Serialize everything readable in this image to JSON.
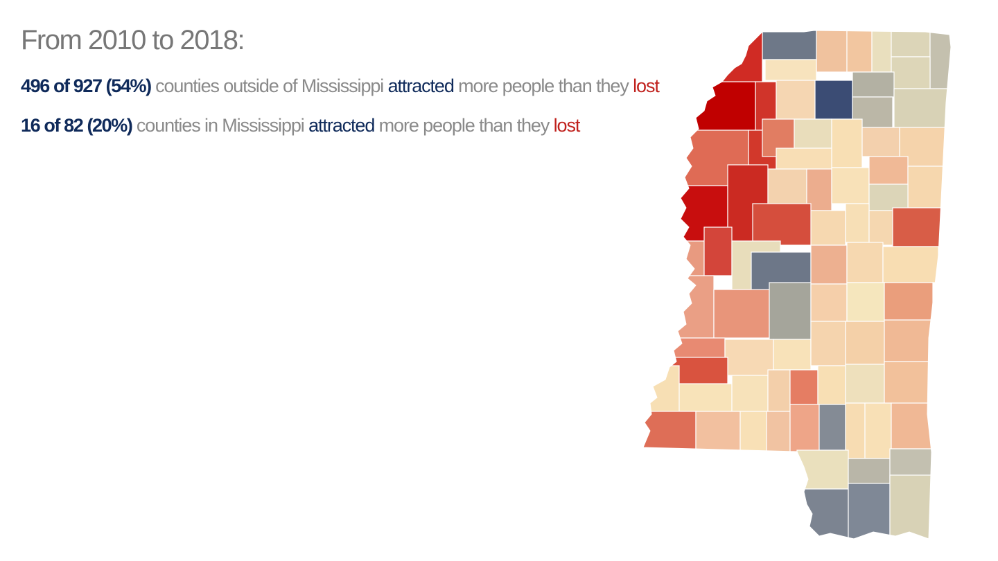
{
  "headline": "From 2010 to 2018:",
  "line1": {
    "highlight": "496 of 927 (54%)",
    "text_a": " counties outside of Mississippi ",
    "attracted": "attracted",
    "text_b": " more people than they ",
    "lost": "lost"
  },
  "line2": {
    "highlight": "16 of 82 (20%)",
    "text_a": " counties in Mississippi ",
    "attracted": "attracted",
    "text_b": " more people than they ",
    "lost": "lost"
  },
  "colors": {
    "text_gray": "#8a8a8a",
    "attracted_navy": "#0f2a5a",
    "lost_red": "#c0211d",
    "scale_strong_loss": "#c00000",
    "scale_loss": "#d2372b",
    "scale_mid_loss": "#df6a55",
    "scale_light_loss": "#edb08c",
    "scale_neutral": "#f6dcb0",
    "scale_light_gain": "#e8dfbe",
    "scale_gain_gray": "#b8b4a4",
    "scale_gain_slate": "#7e8796",
    "scale_strong_gain": "#3a4d78"
  },
  "map": {
    "name": "Mississippi counties net migration"
  }
}
